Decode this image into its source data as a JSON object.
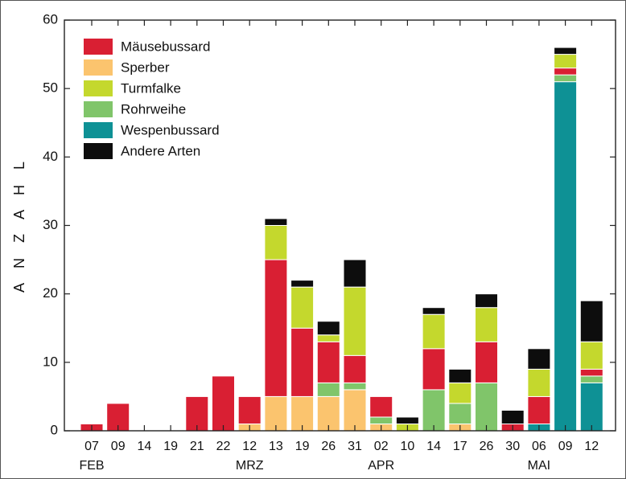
{
  "chart_data": {
    "type": "bar",
    "stacked": true,
    "title": "",
    "xlabel": "",
    "ylabel": "A N Z A H L",
    "ylim": [
      0,
      60
    ],
    "yticks": [
      0,
      10,
      20,
      30,
      40,
      50,
      60
    ],
    "grid": false,
    "legend_position": "top-left",
    "categories": [
      "07",
      "09",
      "14",
      "19",
      "21",
      "22",
      "12",
      "13",
      "19",
      "26",
      "31",
      "02",
      "10",
      "14",
      "17",
      "26",
      "30",
      "06",
      "09",
      "12"
    ],
    "month_labels": [
      {
        "label": "FEB",
        "index": 0
      },
      {
        "label": "MRZ",
        "index": 6
      },
      {
        "label": "APR",
        "index": 11
      },
      {
        "label": "MAI",
        "index": 17
      }
    ],
    "series": [
      {
        "name": "Wespenbussard",
        "color": "#0e9195",
        "values": [
          0,
          0,
          0,
          0,
          0,
          0,
          0,
          0,
          0,
          0,
          0,
          0,
          0,
          0,
          0,
          0,
          0,
          1,
          51,
          7
        ]
      },
      {
        "name": "Sperber",
        "color": "#fbc46e",
        "values": [
          0,
          0,
          0,
          0,
          0,
          0,
          1,
          5,
          5,
          5,
          6,
          1,
          0,
          0,
          1,
          0,
          0,
          0,
          0,
          0
        ]
      },
      {
        "name": "Rohrweihe",
        "color": "#80c56a",
        "values": [
          0,
          0,
          0,
          0,
          0,
          0,
          0,
          0,
          0,
          2,
          1,
          1,
          0,
          6,
          3,
          7,
          0,
          0,
          1,
          1
        ]
      },
      {
        "name": "Mäusebussard",
        "color": "#d91f33",
        "values": [
          1,
          4,
          0,
          0,
          5,
          8,
          4,
          20,
          10,
          6,
          4,
          3,
          0,
          6,
          0,
          6,
          1,
          4,
          1,
          1
        ]
      },
      {
        "name": "Turmfalke",
        "color": "#c4d82d",
        "values": [
          0,
          0,
          0,
          0,
          0,
          0,
          0,
          5,
          6,
          1,
          10,
          0,
          1,
          5,
          3,
          5,
          0,
          4,
          2,
          4
        ]
      },
      {
        "name": "Andere Arten",
        "color": "#0d0d0d",
        "values": [
          0,
          0,
          0,
          0,
          0,
          0,
          0,
          1,
          1,
          2,
          4,
          0,
          1,
          1,
          2,
          2,
          2,
          3,
          1,
          6
        ]
      }
    ],
    "legend": [
      {
        "name": "Mäusebussard",
        "color": "#d91f33"
      },
      {
        "name": "Sperber",
        "color": "#fbc46e"
      },
      {
        "name": "Turmfalke",
        "color": "#c4d82d"
      },
      {
        "name": "Rohrweihe",
        "color": "#80c56a"
      },
      {
        "name": "Wespenbussard",
        "color": "#0e9195"
      },
      {
        "name": "Andere Arten",
        "color": "#0d0d0d"
      }
    ]
  }
}
